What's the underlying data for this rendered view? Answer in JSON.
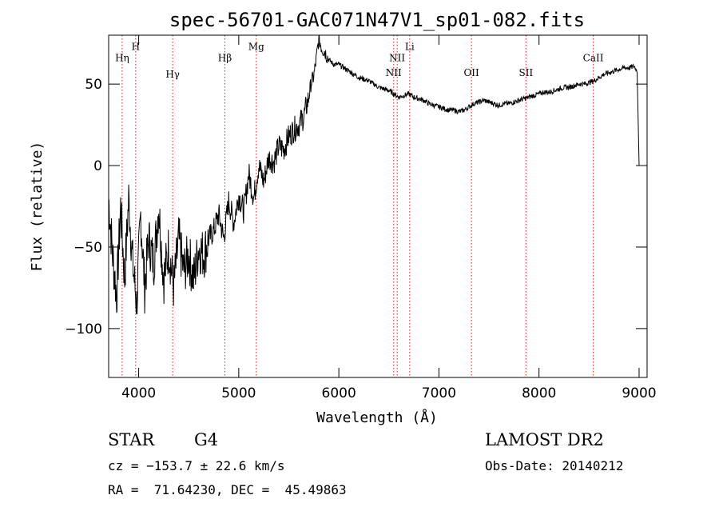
{
  "chart_data": {
    "type": "line",
    "title": "spec-56701-GAC071N47V1_sp01-082.fits",
    "xlabel": "Wavelength (Å)",
    "ylabel": "Flux (relative)",
    "xlim": [
      3700,
      9080
    ],
    "ylim": [
      -130,
      80
    ],
    "xticks": [
      4000,
      5000,
      6000,
      7000,
      8000,
      9000
    ],
    "yticks": [
      -100,
      -50,
      0,
      50
    ],
    "xtick_labels": [
      "4000",
      "5000",
      "6000",
      "7000",
      "8000",
      "9000"
    ],
    "ytick_labels": [
      "−100",
      "−50",
      "0",
      "50"
    ],
    "line_color": "#000000",
    "marker_color": "#cc2222",
    "spectral_lines": [
      {
        "label": "Hη",
        "wavelength": 3835,
        "label_y": 64
      },
      {
        "label": "H",
        "wavelength": 3970,
        "label_y": 71
      },
      {
        "label": "Hγ",
        "wavelength": 4340,
        "label_y": 54
      },
      {
        "label": "Hβ",
        "wavelength": 4861,
        "label_y": 64
      },
      {
        "label": "Mg",
        "wavelength": 5175,
        "label_y": 71
      },
      {
        "label": "NII",
        "wavelength": 6548,
        "label_y": 55
      },
      {
        "label": "NII",
        "wavelength": 6583,
        "label_y": 64
      },
      {
        "label": "Li",
        "wavelength": 6708,
        "label_y": 71
      },
      {
        "label": "OII",
        "wavelength": 7325,
        "label_y": 55
      },
      {
        "label": "SII",
        "wavelength": 7870,
        "label_y": 55
      },
      {
        "label": "CaII",
        "wavelength": 8542,
        "label_y": 64
      }
    ],
    "series": [
      {
        "x": [
          3700,
          3740,
          3780,
          3820,
          3860,
          3900,
          3940,
          3980,
          4020,
          4060,
          4100,
          4150,
          4200,
          4250,
          4300,
          4350,
          4400,
          4450,
          4500,
          4550,
          4600,
          4650,
          4700,
          4750,
          4800,
          4850,
          4900,
          4950,
          5000,
          5050,
          5100,
          5150,
          5200,
          5250,
          5300,
          5350,
          5400,
          5450,
          5500,
          5550,
          5600,
          5650,
          5700,
          5720,
          5750,
          5780,
          5800,
          5830,
          5860,
          5900,
          5950,
          6000,
          6050,
          6100,
          6150,
          6200,
          6250,
          6300,
          6350,
          6400,
          6450,
          6500,
          6550,
          6600,
          6650,
          6700,
          6750,
          6800,
          6850,
          6900,
          6950,
          7000,
          7050,
          7100,
          7150,
          7200,
          7250,
          7300,
          7350,
          7400,
          7450,
          7500,
          7550,
          7600,
          7650,
          7700,
          7750,
          7800,
          7850,
          7900,
          7950,
          8000,
          8050,
          8100,
          8150,
          8200,
          8250,
          8300,
          8350,
          8400,
          8450,
          8500,
          8550,
          8600,
          8650,
          8700,
          8750,
          8800,
          8850,
          8900,
          8950,
          8980,
          9000
        ],
        "values": [
          -20,
          -55,
          -80,
          -25,
          -70,
          -20,
          -60,
          -85,
          -30,
          -75,
          -45,
          -60,
          -25,
          -70,
          -50,
          -75,
          -45,
          -65,
          -55,
          -70,
          -50,
          -55,
          -45,
          -40,
          -30,
          -45,
          -22,
          -35,
          -18,
          -28,
          -5,
          -20,
          0,
          -10,
          5,
          2,
          12,
          10,
          18,
          22,
          25,
          30,
          42,
          50,
          55,
          68,
          78,
          72,
          70,
          65,
          62,
          62,
          60,
          58,
          56,
          54,
          53,
          52,
          50,
          48,
          47,
          46,
          44,
          42,
          43,
          44,
          42,
          41,
          40,
          38,
          37,
          36,
          35,
          34,
          34,
          33,
          34,
          36,
          38,
          39,
          40,
          39,
          38,
          37,
          38,
          38,
          39,
          40,
          41,
          42,
          43,
          44,
          45,
          45,
          46,
          47,
          48,
          48,
          49,
          50,
          50,
          51,
          52,
          54,
          56,
          57,
          58,
          59,
          60,
          60,
          61,
          58,
          0
        ]
      }
    ]
  },
  "info": {
    "object_type": "STAR",
    "subclass": "G4",
    "survey": "LAMOST DR2",
    "cz": "cz = −153.7 ± 22.6 km/s",
    "obs_date": "Obs-Date: 20140212",
    "coords": "RA =  71.64230, DEC =  45.49863"
  }
}
